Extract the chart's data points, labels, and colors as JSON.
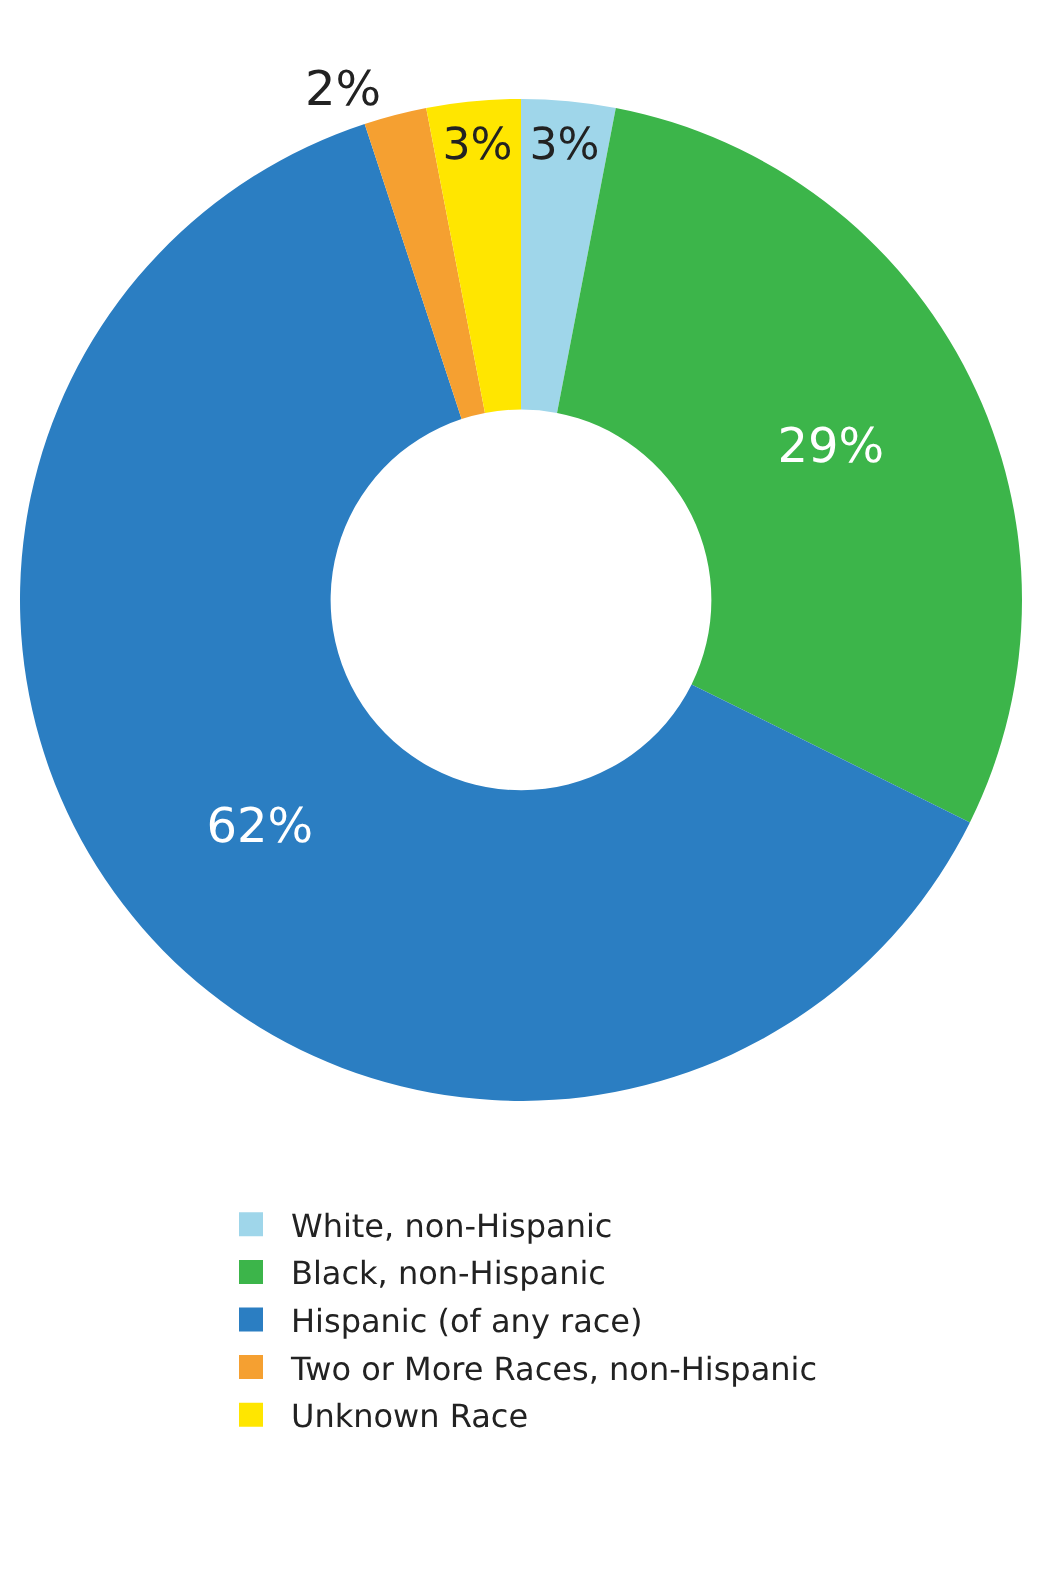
{
  "chart_data": {
    "type": "donut",
    "categories": [
      "White, non-Hispanic",
      "Black, non-Hispanic",
      "Hispanic (of any race)",
      "Two or More Races, non-Hispanic",
      "Unknown Race"
    ],
    "values": [
      3,
      29,
      62,
      2,
      3
    ],
    "colors": [
      "#9fd6ea",
      "#3cb54a",
      "#2b7ec2",
      "#f5a031",
      "#ffe600"
    ],
    "value_labels": [
      "3%",
      "29%",
      "62%",
      "2%",
      "3%"
    ],
    "legend": "bottom"
  }
}
